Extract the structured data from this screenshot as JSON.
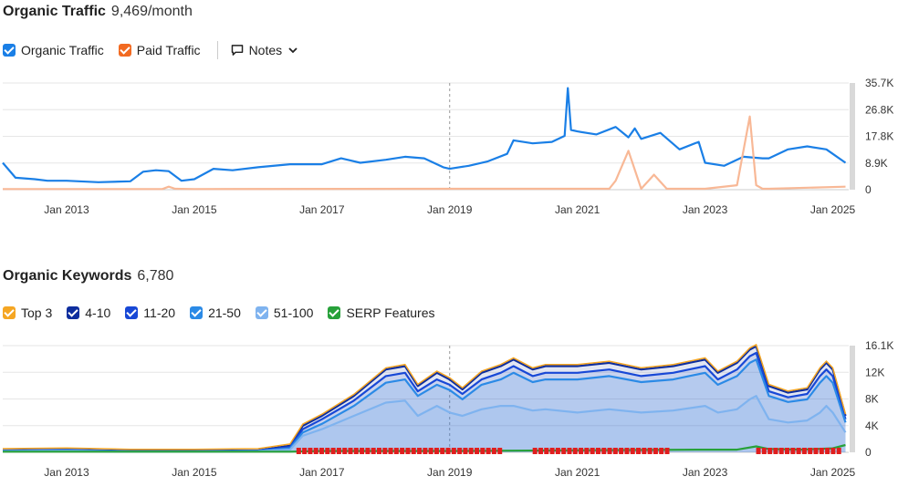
{
  "traffic": {
    "title": "Organic Traffic",
    "value": "9,469/month",
    "legend": [
      {
        "label": "Organic Traffic",
        "color": "#1a7fe6"
      },
      {
        "label": "Paid Traffic",
        "color": "#f26a21"
      }
    ],
    "notes_label": "Notes"
  },
  "keywords": {
    "title": "Organic Keywords",
    "value": "6,780",
    "legend": [
      {
        "label": "Top 3",
        "color": "#f5a623"
      },
      {
        "label": "4-10",
        "color": "#0e2e9e"
      },
      {
        "label": "11-20",
        "color": "#1848d6"
      },
      {
        "label": "21-50",
        "color": "#2b8ae6"
      },
      {
        "label": "51-100",
        "color": "#7fb3ef"
      },
      {
        "label": "SERP Features",
        "color": "#27a13a"
      }
    ]
  },
  "chart_data": [
    {
      "type": "line",
      "xlabel": "",
      "ylabel": "",
      "x_ticks": [
        "Jan 2013",
        "Jan 2015",
        "Jan 2017",
        "Jan 2019",
        "Jan 2021",
        "Jan 2023",
        "Jan 2025"
      ],
      "y_ticks": [
        "35.7K",
        "26.8K",
        "17.8K",
        "8.9K",
        "0"
      ],
      "ylim": [
        0,
        35700
      ],
      "xlim": [
        2012.0,
        2025.25
      ],
      "grid": true,
      "series": [
        {
          "name": "Organic Traffic",
          "color": "#1a7fe6",
          "x": [
            2012.0,
            2012.2,
            2012.5,
            2012.7,
            2013.0,
            2013.5,
            2014.0,
            2014.2,
            2014.4,
            2014.6,
            2014.8,
            2015.0,
            2015.3,
            2015.6,
            2016.0,
            2016.5,
            2017.0,
            2017.3,
            2017.6,
            2018.0,
            2018.3,
            2018.6,
            2018.9,
            2019.0,
            2019.3,
            2019.6,
            2019.9,
            2020.0,
            2020.3,
            2020.6,
            2020.8,
            2020.85,
            2020.9,
            2021.0,
            2021.3,
            2021.6,
            2021.8,
            2021.9,
            2022.0,
            2022.3,
            2022.6,
            2022.9,
            2023.0,
            2023.3,
            2023.6,
            2023.9,
            2024.0,
            2024.3,
            2024.6,
            2024.9,
            2025.0,
            2025.2
          ],
          "values": [
            9000,
            4000,
            3500,
            3000,
            3000,
            2500,
            2800,
            6000,
            6500,
            6200,
            3000,
            3500,
            7000,
            6500,
            7500,
            8500,
            8500,
            10500,
            9000,
            10000,
            11000,
            10500,
            7500,
            7000,
            8000,
            9500,
            12000,
            16500,
            15500,
            16000,
            18000,
            34000,
            20000,
            19500,
            18500,
            21000,
            17500,
            20500,
            17000,
            19000,
            13500,
            16000,
            9000,
            8000,
            11000,
            10500,
            10500,
            13500,
            14500,
            13500,
            12000,
            9000
          ]
        },
        {
          "name": "Paid Traffic",
          "color": "#f26a21",
          "x": [
            2012.0,
            2014.5,
            2014.6,
            2014.7,
            2015.0,
            2019.0,
            2021.5,
            2021.6,
            2021.8,
            2022.0,
            2022.2,
            2022.4,
            2023.0,
            2023.5,
            2023.7,
            2023.8,
            2023.9,
            2024.0,
            2025.2
          ],
          "values": [
            200,
            200,
            1000,
            300,
            200,
            300,
            300,
            3000,
            13000,
            300,
            5000,
            300,
            300,
            1500,
            24500,
            1500,
            300,
            300,
            1000
          ]
        }
      ]
    },
    {
      "type": "area",
      "xlabel": "",
      "ylabel": "",
      "x_ticks": [
        "Jan 2013",
        "Jan 2015",
        "Jan 2017",
        "Jan 2019",
        "Jan 2021",
        "Jan 2023",
        "Jan 2025"
      ],
      "y_ticks": [
        "16.1K",
        "12K",
        "8K",
        "4K",
        "0"
      ],
      "ylim": [
        0,
        16100
      ],
      "xlim": [
        2012.0,
        2025.25
      ],
      "grid": true,
      "series": [
        {
          "name": "Top 3",
          "color": "#f5a623"
        },
        {
          "name": "4-10",
          "color": "#0e2e9e",
          "x": [
            2012.0,
            2013.0,
            2014.0,
            2015.0,
            2016.0,
            2016.5,
            2016.7,
            2017.0,
            2017.5,
            2018.0,
            2018.3,
            2018.5,
            2018.8,
            2019.0,
            2019.2,
            2019.5,
            2019.8,
            2020.0,
            2020.3,
            2020.5,
            2021.0,
            2021.5,
            2022.0,
            2022.5,
            2023.0,
            2023.2,
            2023.5,
            2023.7,
            2023.8,
            2024.0,
            2024.3,
            2024.6,
            2024.8,
            2024.9,
            2025.0,
            2025.2
          ],
          "values": [
            300,
            400,
            200,
            200,
            300,
            1000,
            4000,
            5500,
            8500,
            12500,
            13000,
            10000,
            12000,
            11000,
            9500,
            12000,
            13000,
            14000,
            12500,
            13000,
            13000,
            13500,
            12500,
            13000,
            14000,
            12000,
            13500,
            15500,
            16000,
            10000,
            9000,
            9500,
            12500,
            13500,
            12500,
            5500
          ]
        },
        {
          "name": "11-20",
          "color": "#1848d6",
          "x": [
            2012.0,
            2013.0,
            2014.0,
            2015.0,
            2016.0,
            2016.5,
            2016.7,
            2017.0,
            2017.5,
            2018.0,
            2018.3,
            2018.5,
            2018.8,
            2019.0,
            2019.2,
            2019.5,
            2019.8,
            2020.0,
            2020.3,
            2020.5,
            2021.0,
            2021.5,
            2022.0,
            2022.5,
            2023.0,
            2023.2,
            2023.5,
            2023.7,
            2023.8,
            2024.0,
            2024.3,
            2024.6,
            2024.8,
            2024.9,
            2025.0,
            2025.2
          ],
          "values": [
            250,
            350,
            150,
            150,
            250,
            800,
            3500,
            5000,
            7800,
            11500,
            12000,
            9200,
            11000,
            10200,
            8800,
            11000,
            12000,
            13000,
            11500,
            12000,
            12000,
            12500,
            11500,
            12000,
            13000,
            11000,
            12500,
            14500,
            15000,
            9200,
            8300,
            8800,
            11500,
            12500,
            11500,
            5000
          ]
        },
        {
          "name": "21-50",
          "color": "#2b8ae6",
          "x": [
            2012.0,
            2013.0,
            2014.0,
            2015.0,
            2016.0,
            2016.5,
            2016.7,
            2017.0,
            2017.5,
            2018.0,
            2018.3,
            2018.5,
            2018.8,
            2019.0,
            2019.2,
            2019.5,
            2019.8,
            2020.0,
            2020.3,
            2020.5,
            2021.0,
            2021.5,
            2022.0,
            2022.5,
            2023.0,
            2023.2,
            2023.5,
            2023.7,
            2023.8,
            2024.0,
            2024.3,
            2024.6,
            2024.8,
            2024.9,
            2025.0,
            2025.2
          ],
          "values": [
            200,
            300,
            100,
            100,
            200,
            600,
            3000,
            4300,
            7000,
            10500,
            11000,
            8500,
            10200,
            9400,
            8000,
            10200,
            11000,
            12000,
            10600,
            11000,
            11000,
            11500,
            10600,
            11000,
            12000,
            10200,
            11500,
            13500,
            14000,
            8500,
            7600,
            8000,
            10500,
            11500,
            10500,
            4500
          ]
        },
        {
          "name": "51-100",
          "color": "#7fb3ef",
          "x": [
            2012.0,
            2013.0,
            2014.0,
            2015.0,
            2016.0,
            2016.5,
            2016.7,
            2017.0,
            2017.5,
            2018.0,
            2018.3,
            2018.5,
            2018.8,
            2019.0,
            2019.2,
            2019.5,
            2019.8,
            2020.0,
            2020.3,
            2020.5,
            2021.0,
            2021.5,
            2022.0,
            2022.5,
            2023.0,
            2023.2,
            2023.5,
            2023.7,
            2023.8,
            2024.0,
            2024.3,
            2024.6,
            2024.8,
            2024.9,
            2025.0,
            2025.2
          ],
          "values": [
            150,
            200,
            80,
            80,
            150,
            400,
            2500,
            3500,
            5500,
            7500,
            7800,
            5500,
            7000,
            6000,
            5500,
            6500,
            7000,
            7000,
            6300,
            6500,
            6000,
            6500,
            6000,
            6300,
            7000,
            6000,
            6500,
            8000,
            8500,
            5000,
            4500,
            4800,
            6000,
            7000,
            6000,
            3000
          ]
        },
        {
          "name": "SERP Features",
          "color": "#27a13a",
          "x": [
            2012.0,
            2016.5,
            2017.0,
            2019.0,
            2021.0,
            2023.0,
            2023.5,
            2023.8,
            2024.0,
            2024.5,
            2025.0,
            2025.2
          ],
          "values": [
            100,
            100,
            200,
            200,
            300,
            400,
            400,
            900,
            500,
            400,
            600,
            1100
          ]
        }
      ]
    }
  ]
}
